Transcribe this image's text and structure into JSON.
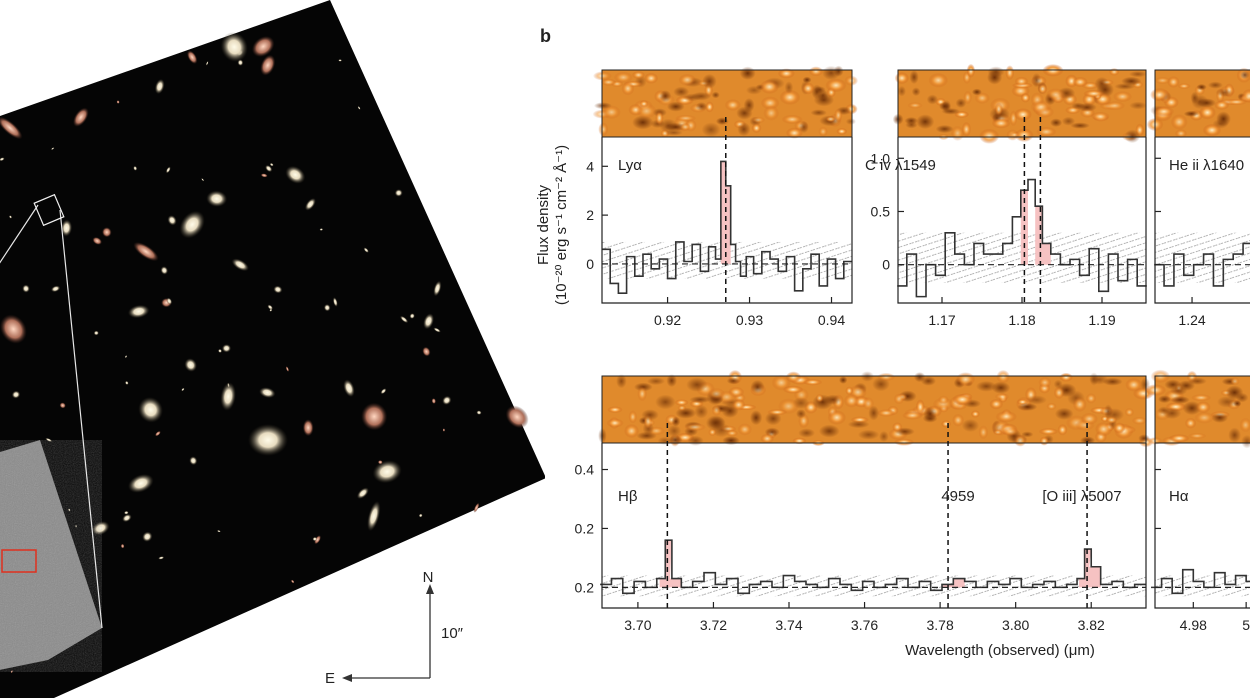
{
  "panel_label": "b",
  "compass": {
    "north": "N",
    "east": "E",
    "scale": "10″"
  },
  "y_axis_label": {
    "line1": "Flux density",
    "line2": "(10⁻²⁰ erg s⁻¹ cm⁻² Å⁻¹)"
  },
  "x_axis_label": "Wavelength (observed) (μm)",
  "chart_data": [
    {
      "type": "line",
      "line_label": "Lyα",
      "x_ticks": [
        "0.92",
        "0.93",
        "0.94"
      ],
      "y_ticks": [
        "0",
        "2",
        "4"
      ],
      "xlim": [
        0.912,
        0.9425
      ],
      "ylim": [
        -1.6,
        5.2
      ],
      "line_positions": [
        0.9271
      ],
      "x": [
        0.9125,
        0.9135,
        0.9145,
        0.9155,
        0.9165,
        0.9175,
        0.9185,
        0.9195,
        0.9205,
        0.9215,
        0.9225,
        0.9235,
        0.9245,
        0.9255,
        0.9262,
        0.9268,
        0.9274,
        0.928,
        0.9286,
        0.9292,
        0.93,
        0.931,
        0.932,
        0.933,
        0.934,
        0.935,
        0.936,
        0.937,
        0.938,
        0.939,
        0.94,
        0.941,
        0.942
      ],
      "flux": [
        0.6,
        -0.8,
        -1.2,
        0.3,
        -0.5,
        0.4,
        -0.2,
        0.2,
        -0.6,
        0.9,
        0.1,
        0.8,
        -0.3,
        0.7,
        0.2,
        4.2,
        3.2,
        0.8,
        0.1,
        -0.5,
        0.3,
        -0.4,
        0.5,
        0.2,
        -0.3,
        0.3,
        -1.1,
        -0.2,
        0.4,
        -0.9,
        0.2,
        -0.6,
        0.1
      ]
    },
    {
      "type": "line",
      "line_label": "C iv λ1549",
      "x_ticks": [
        "1.17",
        "1.18",
        "1.19"
      ],
      "y_ticks": [
        "0",
        "0.5",
        "1.0"
      ],
      "xlim": [
        1.1645,
        1.1955
      ],
      "ylim": [
        -0.36,
        1.2
      ],
      "line_positions": [
        1.1803,
        1.1823
      ],
      "x": [
        1.165,
        1.1662,
        1.1674,
        1.1686,
        1.1698,
        1.171,
        1.1722,
        1.1734,
        1.1746,
        1.1758,
        1.177,
        1.1782,
        1.1794,
        1.1803,
        1.1812,
        1.1821,
        1.183,
        1.1842,
        1.1854,
        1.1866,
        1.1878,
        1.189,
        1.1902,
        1.1914,
        1.1926,
        1.1938,
        1.195
      ],
      "flux": [
        -0.2,
        0.1,
        -0.3,
        0.0,
        -0.1,
        0.3,
        0.1,
        0.0,
        0.2,
        0.1,
        0.1,
        0.2,
        0.45,
        0.7,
        0.8,
        0.55,
        0.2,
        0.1,
        0.0,
        0.05,
        -0.1,
        0.15,
        -0.25,
        0.1,
        -0.15,
        0.05,
        -0.2
      ]
    },
    {
      "type": "line",
      "line_label": "He ii λ1640",
      "x_ticks": [
        "1.24"
      ],
      "y_ticks": [],
      "xlim": [
        1.2355,
        1.2485
      ],
      "ylim": [
        -0.36,
        1.2
      ],
      "line_positions": [],
      "x": [
        1.236,
        1.2372,
        1.2384,
        1.2396,
        1.2408,
        1.242,
        1.2432,
        1.2444,
        1.2456,
        1.2468,
        1.248
      ],
      "flux": [
        0.0,
        -0.2,
        0.1,
        -0.1,
        0.0,
        0.1,
        -0.2,
        0.05,
        0.1,
        0.2,
        0.3
      ]
    },
    {
      "type": "line",
      "line_label": "Hβ",
      "annotations": [
        "4959",
        "[O iii] λ5007"
      ],
      "x_ticks": [
        "3.70",
        "3.72",
        "3.74",
        "3.76",
        "3.78",
        "3.80",
        "3.82"
      ],
      "y_ticks": [
        "0.2",
        "0.2",
        "0.4"
      ],
      "xlim": [
        3.6905,
        3.8345
      ],
      "ylim": [
        -0.07,
        0.49
      ],
      "line_positions": [
        3.7078,
        3.7821,
        3.8189
      ],
      "x": [
        3.6915,
        3.6945,
        3.6975,
        3.7005,
        3.7035,
        3.7065,
        3.708,
        3.71,
        3.713,
        3.716,
        3.719,
        3.722,
        3.725,
        3.728,
        3.731,
        3.734,
        3.737,
        3.74,
        3.743,
        3.746,
        3.749,
        3.752,
        3.755,
        3.758,
        3.761,
        3.764,
        3.767,
        3.77,
        3.773,
        3.776,
        3.779,
        3.782,
        3.785,
        3.788,
        3.791,
        3.794,
        3.797,
        3.8,
        3.803,
        3.806,
        3.809,
        3.812,
        3.815,
        3.8175,
        3.819,
        3.821,
        3.824,
        3.827,
        3.83,
        3.833
      ],
      "flux": [
        0.01,
        0.03,
        -0.02,
        0.02,
        0.0,
        0.03,
        0.16,
        0.03,
        0.0,
        0.02,
        0.05,
        0.01,
        0.03,
        -0.02,
        0.01,
        0.02,
        0.0,
        0.04,
        0.02,
        0.01,
        0.0,
        0.03,
        0.01,
        -0.01,
        0.02,
        0.0,
        0.01,
        0.03,
        0.0,
        0.02,
        -0.01,
        0.01,
        0.03,
        0.02,
        0.0,
        0.02,
        0.01,
        0.03,
        0.0,
        0.01,
        0.02,
        0.0,
        0.01,
        0.03,
        0.13,
        0.07,
        0.01,
        0.02,
        0.0,
        0.01
      ]
    },
    {
      "type": "line",
      "line_label": "Hα",
      "x_ticks": [
        "4.98",
        "5"
      ],
      "y_ticks": [],
      "xlim": [
        4.9655,
        5.006
      ],
      "ylim": [
        -0.07,
        0.49
      ],
      "line_positions": [],
      "x": [
        4.966,
        4.97,
        4.974,
        4.978,
        4.982,
        4.986,
        4.99,
        4.994,
        4.998,
        5.002,
        5.006
      ],
      "flux": [
        0.0,
        0.03,
        -0.02,
        0.06,
        0.02,
        0.0,
        0.05,
        0.01,
        0.04,
        0.02,
        0.03
      ]
    }
  ]
}
